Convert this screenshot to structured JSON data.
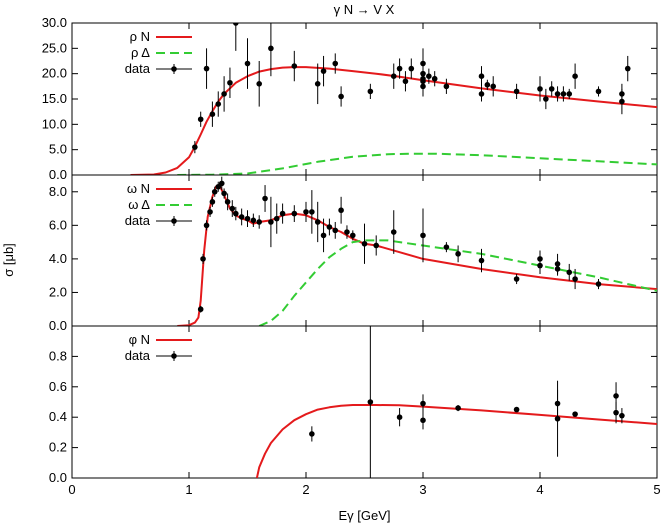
{
  "title": "γ N → V X",
  "colors": {
    "resonance_nucleon": "#e41a1c",
    "resonance_delta": "#33cc33",
    "data": "#000000"
  },
  "chart_data": [
    {
      "type": "line",
      "xlim": [
        0,
        5
      ],
      "ylim": [
        0,
        30
      ],
      "yticks": [
        0,
        5,
        10,
        15,
        20,
        25,
        30
      ],
      "ytick_labels": [
        "0.0",
        "5.0",
        "10.0",
        "15.0",
        "20.0",
        "25.0",
        "30.0"
      ],
      "legend_position": "top-left",
      "series": [
        {
          "name": "ρ N",
          "style": "solid",
          "color": "#e41a1c",
          "x": [
            0.5,
            0.7,
            0.8,
            0.9,
            1.0,
            1.05,
            1.1,
            1.15,
            1.2,
            1.25,
            1.3,
            1.4,
            1.5,
            1.6,
            1.7,
            1.8,
            1.9,
            2.0,
            2.2,
            2.4,
            2.6,
            2.8,
            3.0,
            3.5,
            4.0,
            4.5,
            5.0
          ],
          "y": [
            0,
            0.1,
            0.5,
            1.4,
            3.5,
            5.6,
            8.0,
            10.5,
            12.6,
            14.5,
            16.0,
            18.2,
            19.5,
            20.4,
            20.9,
            21.2,
            21.3,
            21.3,
            21.0,
            20.5,
            20.0,
            19.4,
            18.7,
            17.1,
            15.7,
            14.5,
            13.4
          ]
        },
        {
          "name": "ρ Δ",
          "style": "dashed",
          "color": "#33cc33",
          "x": [
            0.9,
            1.2,
            1.5,
            1.8,
            2.1,
            2.4,
            2.7,
            2.9,
            3.1,
            3.5,
            4.0,
            4.5,
            5.0
          ],
          "y": [
            0,
            0.05,
            0.3,
            1.3,
            2.6,
            3.6,
            4.1,
            4.2,
            4.2,
            3.9,
            3.3,
            2.7,
            2.1
          ]
        },
        {
          "name": "data",
          "style": "points",
          "x": [
            1.05,
            1.1,
            1.15,
            1.2,
            1.25,
            1.3,
            1.35,
            1.4,
            1.5,
            1.6,
            1.7,
            1.9,
            2.1,
            2.15,
            2.25,
            2.3,
            2.55,
            2.75,
            2.8,
            2.85,
            2.9,
            3.0,
            3.0,
            3.0,
            3.0,
            3.0,
            3.05,
            3.1,
            3.2,
            3.5,
            3.5,
            3.55,
            3.6,
            3.8,
            4.0,
            4.05,
            4.1,
            4.15,
            4.2,
            4.25,
            4.3,
            4.5,
            4.7,
            4.7,
            4.75
          ],
          "y": [
            5.5,
            11.0,
            21.0,
            12.0,
            14.0,
            16.0,
            18.2,
            30.0,
            22.0,
            18.0,
            25.0,
            21.5,
            18.0,
            20.5,
            22.0,
            15.5,
            16.5,
            19.5,
            21.0,
            18.5,
            21.0,
            18.5,
            20.0,
            22.0,
            19.0,
            17.5,
            19.5,
            19.0,
            17.5,
            19.5,
            16.0,
            17.8,
            17.5,
            16.5,
            17.0,
            15.0,
            17.0,
            16.0,
            16.0,
            16.0,
            19.5,
            16.5,
            14.5,
            16.0,
            21.0
          ],
          "err": [
            1.2,
            1.5,
            4.0,
            2.5,
            2.5,
            3.5,
            3.0,
            5.5,
            5.0,
            4.5,
            5.5,
            3.0,
            4.0,
            3.0,
            2.0,
            2.0,
            1.5,
            2.5,
            2.0,
            2.0,
            2.0,
            1.5,
            2.0,
            3.0,
            2.5,
            2.0,
            1.5,
            1.5,
            1.5,
            2.0,
            1.5,
            1.0,
            2.0,
            1.5,
            2.5,
            2.0,
            1.5,
            1.5,
            1.5,
            1.0,
            2.5,
            1.0,
            2.5,
            2.0,
            2.5
          ]
        }
      ]
    },
    {
      "type": "line",
      "xlim": [
        0,
        5
      ],
      "ylim": [
        0,
        9
      ],
      "yticks": [
        0,
        2,
        4,
        6,
        8
      ],
      "ytick_labels": [
        "0.0",
        "2.0",
        "4.0",
        "6.0",
        "8.0"
      ],
      "ylabel": "σ [μb]",
      "legend_position": "top-left",
      "series": [
        {
          "name": "ω N",
          "style": "solid",
          "color": "#e41a1c",
          "x": [
            0.9,
            1.0,
            1.05,
            1.08,
            1.1,
            1.13,
            1.16,
            1.2,
            1.23,
            1.26,
            1.3,
            1.35,
            1.4,
            1.45,
            1.5,
            1.55,
            1.6,
            1.7,
            1.8,
            1.9,
            2.0,
            2.1,
            2.2,
            2.3,
            2.4,
            2.5,
            2.6,
            2.8,
            3.0,
            3.5,
            4.0,
            4.5,
            5.0
          ],
          "y": [
            0,
            0.05,
            0.2,
            0.5,
            1.5,
            4.5,
            6.5,
            7.7,
            8.3,
            8.4,
            7.8,
            7.0,
            6.6,
            6.4,
            6.3,
            6.1,
            6.2,
            6.3,
            6.6,
            6.7,
            6.6,
            6.3,
            5.9,
            5.6,
            5.2,
            4.9,
            4.8,
            4.4,
            4.0,
            3.4,
            2.9,
            2.5,
            2.2
          ]
        },
        {
          "name": "ω Δ",
          "style": "dashed",
          "color": "#33cc33",
          "x": [
            1.6,
            1.7,
            1.8,
            1.9,
            2.0,
            2.1,
            2.2,
            2.3,
            2.4,
            2.5,
            2.6,
            2.7,
            2.8,
            3.0,
            3.5,
            4.0,
            4.5,
            5.0
          ],
          "y": [
            0,
            0.3,
            0.9,
            1.8,
            2.6,
            3.4,
            4.1,
            4.6,
            5.0,
            5.1,
            5.1,
            5.1,
            5.0,
            4.8,
            4.3,
            3.6,
            2.9,
            2.1
          ]
        },
        {
          "name": "data",
          "style": "points",
          "x": [
            1.1,
            1.12,
            1.15,
            1.18,
            1.2,
            1.22,
            1.25,
            1.28,
            1.3,
            1.33,
            1.37,
            1.4,
            1.45,
            1.5,
            1.55,
            1.6,
            1.65,
            1.7,
            1.75,
            1.8,
            1.9,
            2.0,
            2.05,
            2.1,
            2.15,
            2.2,
            2.25,
            2.3,
            2.35,
            2.4,
            2.5,
            2.6,
            2.75,
            3.0,
            3.2,
            3.3,
            3.5,
            3.8,
            4.0,
            4.0,
            4.15,
            4.15,
            4.25,
            4.3,
            4.5
          ],
          "y": [
            1.0,
            4.0,
            6.0,
            6.8,
            7.4,
            8.0,
            8.3,
            8.5,
            7.9,
            7.4,
            7.0,
            6.7,
            6.5,
            6.4,
            6.3,
            6.2,
            7.6,
            6.2,
            6.4,
            6.7,
            6.7,
            6.8,
            6.8,
            6.2,
            5.4,
            5.9,
            5.7,
            6.9,
            5.6,
            5.4,
            4.9,
            4.8,
            5.6,
            5.4,
            4.7,
            4.3,
            3.9,
            2.8,
            4.0,
            3.6,
            3.7,
            3.4,
            3.2,
            2.8,
            2.5
          ],
          "err": [
            0.2,
            0.3,
            0.3,
            0.3,
            0.3,
            0.3,
            0.3,
            0.4,
            0.3,
            0.5,
            0.5,
            0.4,
            0.5,
            0.5,
            0.4,
            0.4,
            0.8,
            1.5,
            0.9,
            0.6,
            0.5,
            0.6,
            1.3,
            1.2,
            1.0,
            0.5,
            0.5,
            0.8,
            0.4,
            0.3,
            1.2,
            0.6,
            1.3,
            1.6,
            0.3,
            0.5,
            0.7,
            0.3,
            0.5,
            0.5,
            0.6,
            0.4,
            0.5,
            0.6,
            0.3
          ]
        }
      ]
    },
    {
      "type": "line",
      "xlim": [
        0,
        5
      ],
      "ylim": [
        0,
        1
      ],
      "yticks": [
        0,
        0.2,
        0.4,
        0.6,
        0.8
      ],
      "ytick_labels": [
        "0.0",
        "0.2",
        "0.4",
        "0.6",
        "0.8"
      ],
      "xticks": [
        0,
        1,
        2,
        3,
        4,
        5
      ],
      "xtick_labels": [
        "0",
        "1",
        "2",
        "3",
        "4",
        "5"
      ],
      "xlabel": "Eγ [GeV]",
      "legend_position": "top-left",
      "series": [
        {
          "name": "φ N",
          "style": "solid",
          "color": "#e41a1c",
          "x": [
            1.58,
            1.6,
            1.65,
            1.7,
            1.8,
            1.9,
            2.0,
            2.1,
            2.2,
            2.3,
            2.4,
            2.5,
            2.6,
            2.8,
            3.0,
            3.5,
            4.0,
            4.5,
            5.0
          ],
          "y": [
            0,
            0.07,
            0.16,
            0.23,
            0.32,
            0.38,
            0.42,
            0.45,
            0.465,
            0.475,
            0.48,
            0.48,
            0.48,
            0.478,
            0.47,
            0.445,
            0.415,
            0.385,
            0.355
          ]
        },
        {
          "name": "data",
          "style": "points",
          "x": [
            2.05,
            2.55,
            2.8,
            3.0,
            3.0,
            3.3,
            3.8,
            4.15,
            4.15,
            4.3,
            4.65,
            4.65,
            4.7
          ],
          "y": [
            0.29,
            0.5,
            0.4,
            0.49,
            0.38,
            0.46,
            0.45,
            0.49,
            0.39,
            0.42,
            0.54,
            0.43,
            0.41
          ],
          "err": [
            0.05,
            0.5,
            0.06,
            0.06,
            0.06,
            0.02,
            0.01,
            0.09,
            0.25,
            0.01,
            0.09,
            0.07,
            0.05
          ]
        }
      ]
    }
  ]
}
